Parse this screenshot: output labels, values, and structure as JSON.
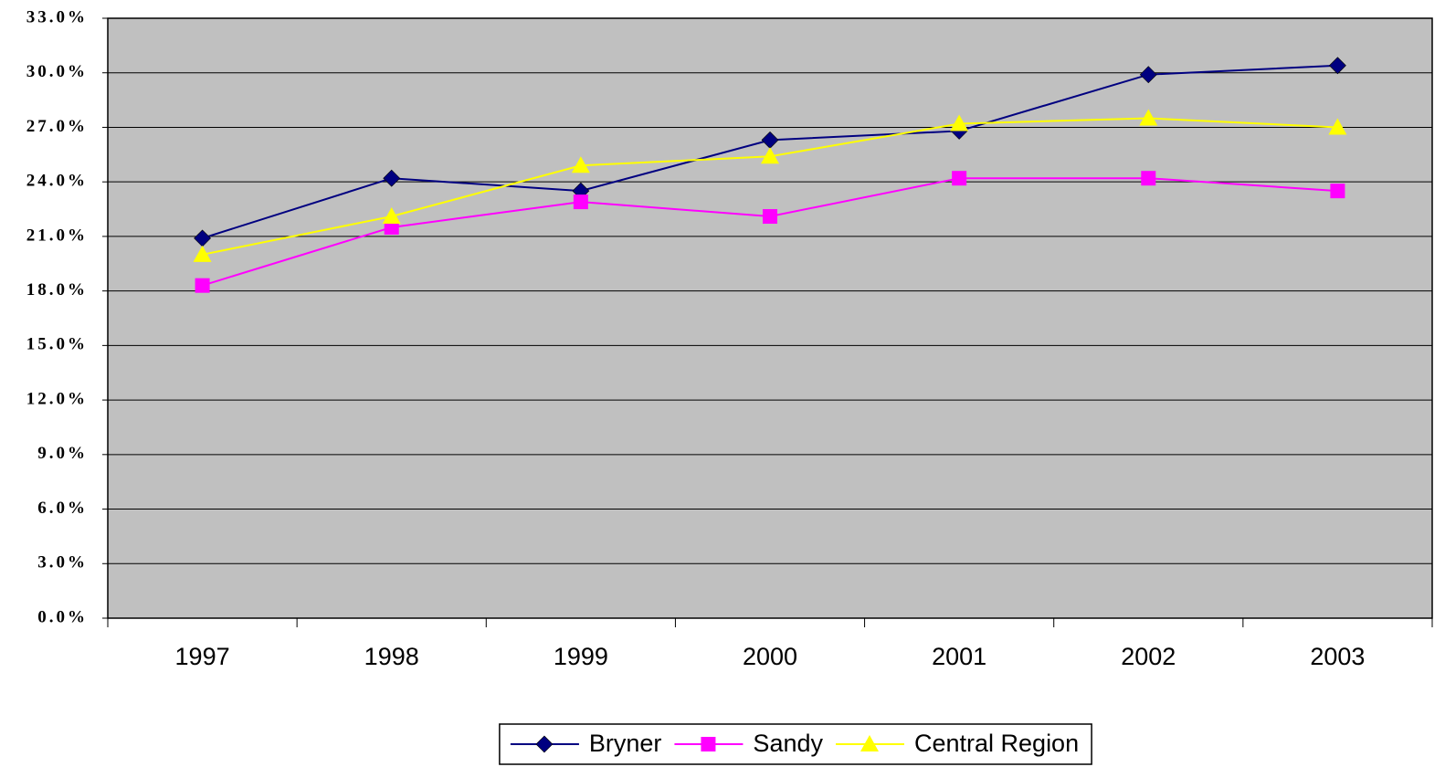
{
  "chart_data": {
    "type": "line",
    "categories": [
      "1997",
      "1998",
      "1999",
      "2000",
      "2001",
      "2002",
      "2003"
    ],
    "series": [
      {
        "name": "Bryner",
        "color": "#000080",
        "marker": "diamond",
        "values": [
          20.9,
          24.2,
          23.5,
          26.3,
          26.8,
          29.9,
          30.4
        ]
      },
      {
        "name": "Sandy",
        "color": "#ff00ff",
        "marker": "square",
        "values": [
          18.3,
          21.5,
          22.9,
          22.1,
          24.2,
          24.2,
          23.5
        ]
      },
      {
        "name": "Central Region",
        "color": "#ffff00",
        "marker": "triangle",
        "values": [
          20.0,
          22.1,
          24.9,
          25.4,
          27.2,
          27.5,
          27.0
        ]
      }
    ],
    "ylim": [
      0,
      33
    ],
    "yticks": [
      {
        "value": 0,
        "label": "0.0%"
      },
      {
        "value": 3,
        "label": "3.0%"
      },
      {
        "value": 6,
        "label": "6.0%"
      },
      {
        "value": 9,
        "label": "9.0%"
      },
      {
        "value": 12,
        "label": "12.0%"
      },
      {
        "value": 15,
        "label": "15.0%"
      },
      {
        "value": 18,
        "label": "18.0%"
      },
      {
        "value": 21,
        "label": "21.0%"
      },
      {
        "value": 24,
        "label": "24.0%"
      },
      {
        "value": 27,
        "label": "27.0%"
      },
      {
        "value": 30,
        "label": "30.0%"
      },
      {
        "value": 33,
        "label": "33.0%"
      }
    ],
    "grid": true,
    "plot_background": "#c0c0c0",
    "legend": "bottom"
  }
}
